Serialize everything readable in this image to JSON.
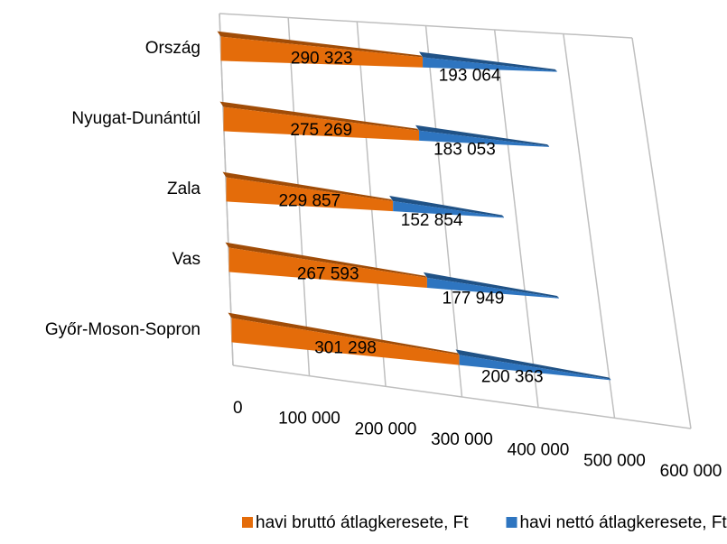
{
  "chart_data": {
    "type": "bar3d_stacked_cone",
    "orientation": "horizontal",
    "categories": [
      "Győr-Moson-Sopron",
      "Vas",
      "Zala",
      "Nyugat-Dunántúl",
      "Ország"
    ],
    "series": [
      {
        "name": "havi bruttó átlagkeresete, Ft",
        "color": "#e46c0a",
        "values": [
          301298,
          267593,
          229857,
          275269,
          290323
        ],
        "value_labels": [
          "301 298",
          "267 593",
          "229 857",
          "275 269",
          "290 323"
        ]
      },
      {
        "name": "havi nettó átlagkeresete, Ft",
        "color": "#2e75c0",
        "values": [
          200363,
          177949,
          152854,
          183053,
          193064
        ],
        "value_labels": [
          "200 363",
          "177 949",
          "152 854",
          "183 053",
          "193 064"
        ]
      }
    ],
    "xlim": [
      0,
      600000
    ],
    "xticks": [
      0,
      {
        "value": 100000,
        "label": "100 000"
      },
      {
        "value": 200000,
        "label": "200 000"
      },
      {
        "value": 300000,
        "label": "300 000"
      },
      {
        "value": 400000,
        "label": "400 000"
      },
      {
        "value": 500000,
        "label": "500 000"
      },
      {
        "value": 600000,
        "label": "600 000"
      }
    ],
    "grid": true,
    "legend": "bottom"
  }
}
